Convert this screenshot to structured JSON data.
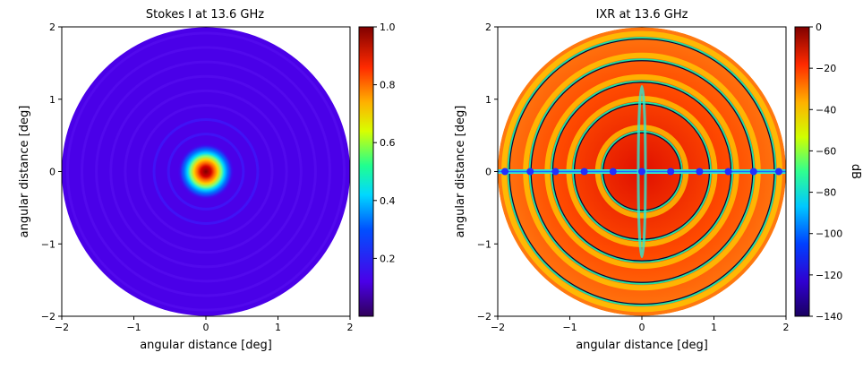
{
  "chart_data": [
    {
      "type": "heatmap",
      "title": "Stokes I at 13.6 GHz",
      "xlabel": "angular distance [deg]",
      "ylabel": "angular distance [deg]",
      "xlim": [
        -2,
        2
      ],
      "ylim": [
        -2,
        2
      ],
      "xticks": [
        "−2",
        "−1",
        "0",
        "1",
        "2"
      ],
      "yticks": [
        "−2",
        "−1",
        "0",
        "1",
        "2"
      ],
      "colormap": "jet",
      "colorbar": {
        "label": "",
        "min": 0.0,
        "max": 1.0,
        "ticks": [
          "0.2",
          "0.4",
          "0.6",
          "0.8",
          "1.0"
        ],
        "tick_values": [
          0.2,
          0.4,
          0.6,
          0.8,
          1.0
        ]
      },
      "field_radius_deg": 2.0,
      "description_values": {
        "peak_value": 1.0,
        "peak_position_deg": [
          0,
          0
        ],
        "background_value": 0.05
      }
    },
    {
      "type": "heatmap",
      "title": "IXR at 13.6 GHz",
      "xlabel": "angular distance [deg]",
      "ylabel": "angular distance [deg]",
      "xlim": [
        -2,
        2
      ],
      "ylim": [
        -2,
        2
      ],
      "xticks": [
        "−2",
        "−1",
        "0",
        "1",
        "2"
      ],
      "yticks": [
        "−2",
        "−1",
        "0",
        "1",
        "2"
      ],
      "colormap": "jet",
      "colorbar": {
        "label": "dB",
        "min": -140,
        "max": 0,
        "ticks": [
          "0",
          "−20",
          "−40",
          "−60",
          "−80",
          "−100",
          "−120",
          "−140"
        ],
        "tick_values": [
          0,
          -20,
          -40,
          -60,
          -80,
          -100,
          -120,
          -140
        ]
      },
      "field_radius_deg": 2.0,
      "ring_radii_deg": [
        0.55,
        0.95,
        1.25,
        1.55,
        1.85
      ]
    }
  ]
}
